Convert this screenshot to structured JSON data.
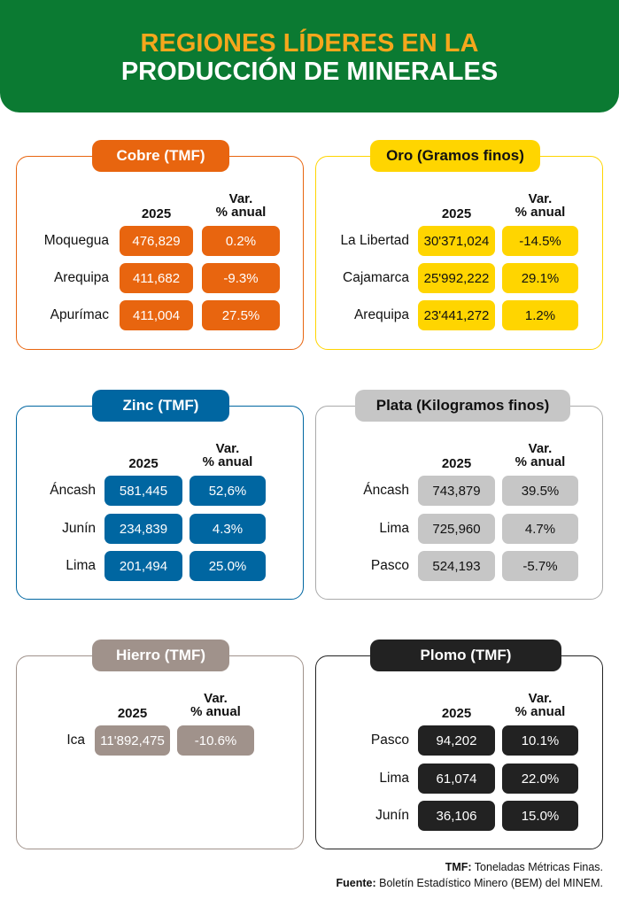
{
  "header": {
    "title_line1": "REGIONES LÍDERES EN LA",
    "title_line2": "PRODUCCIÓN DE MINERALES"
  },
  "panels": [
    {
      "title": "Cobre (TMF)",
      "col_year": "2025",
      "col_change": [
        "Var.",
        "% anual"
      ],
      "rows": [
        {
          "region": "Moquegua",
          "value": "476,829",
          "change": "0.2%"
        },
        {
          "region": "Arequipa",
          "value": "411,682",
          "change": "-9.3%"
        },
        {
          "region": "Apurímac",
          "value": "411,004",
          "change": "27.5%"
        }
      ]
    },
    {
      "title": "Oro (Gramos finos)",
      "col_year": "2025",
      "col_change": [
        "Var.",
        "% anual"
      ],
      "rows": [
        {
          "region": "La Libertad",
          "value": "30'371,024",
          "change": "-14.5%"
        },
        {
          "region": "Cajamarca",
          "value": "25'992,222",
          "change": "29.1%"
        },
        {
          "region": "Arequipa",
          "value": "23'441,272",
          "change": "1.2%"
        }
      ]
    },
    {
      "title": "Zinc (TMF)",
      "col_year": "2025",
      "col_change": [
        "Var.",
        "% anual"
      ],
      "rows": [
        {
          "region": "Áncash",
          "value": "581,445",
          "change": "52,6%"
        },
        {
          "region": "Junín",
          "value": "234,839",
          "change": "4.3%"
        },
        {
          "region": "Lima",
          "value": "201,494",
          "change": "25.0%"
        }
      ]
    },
    {
      "title": "Plata (Kilogramos finos)",
      "col_year": "2025",
      "col_change": [
        "Var.",
        "% anual"
      ],
      "rows": [
        {
          "region": "Áncash",
          "value": "743,879",
          "change": "39.5%"
        },
        {
          "region": "Lima",
          "value": "725,960",
          "change": "4.7%"
        },
        {
          "region": "Pasco",
          "value": "524,193",
          "change": "-5.7%"
        }
      ]
    },
    {
      "title": "Hierro (TMF)",
      "col_year": "2025",
      "col_change": [
        "Var.",
        "% anual"
      ],
      "rows": [
        {
          "region": "Ica",
          "value": "11'892,475",
          "change": "-10.6%"
        }
      ]
    },
    {
      "title": "Plomo (TMF)",
      "col_year": "2025",
      "col_change": [
        "Var.",
        "% anual"
      ],
      "rows": [
        {
          "region": "Pasco",
          "value": "94,202",
          "change": "10.1%"
        },
        {
          "region": "Lima",
          "value": "61,074",
          "change": "22.0%"
        },
        {
          "region": "Junín",
          "value": "36,106",
          "change": "15.0%"
        }
      ]
    }
  ],
  "footer": {
    "line1_label": "TMF:",
    "line1_text": "Toneladas Métricas Finas.",
    "line2_label": "Fuente:",
    "line2_text": "Boletín Estadístico Minero (BEM) del MINEM."
  }
}
